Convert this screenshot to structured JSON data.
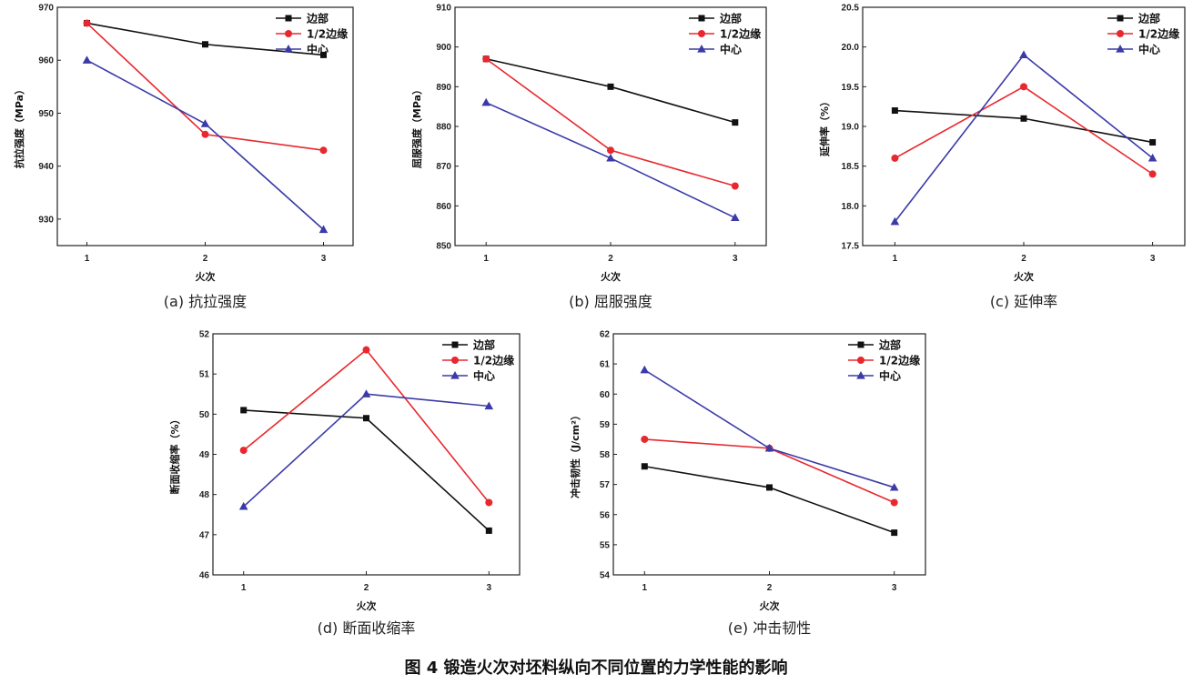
{
  "figure_title": "图 4  锻造火次对坯料纵向不同位置的力学性能的影响",
  "series_colors": {
    "边部": "#111111",
    "1/2边缘": "#e8282e",
    "中心": "#3a3aa8"
  },
  "chart_data": [
    {
      "id": "a",
      "type": "line",
      "caption": "(a) 抗拉强度",
      "xlabel": "火次",
      "ylabel": "抗拉强度（MPa）",
      "x": [
        1,
        2,
        3
      ],
      "ylim": [
        925,
        970
      ],
      "yticks": [
        930,
        940,
        950,
        960,
        970
      ],
      "series": [
        {
          "name": "边部",
          "marker": "square",
          "values": [
            967,
            963,
            961
          ]
        },
        {
          "name": "1/2边缘",
          "marker": "circle",
          "values": [
            967,
            946,
            943
          ]
        },
        {
          "name": "中心",
          "marker": "triangle",
          "values": [
            960,
            948,
            928
          ]
        }
      ],
      "legend": "top-right"
    },
    {
      "id": "b",
      "type": "line",
      "caption": "(b) 屈服强度",
      "xlabel": "火次",
      "ylabel": "屈服强度（MPa）",
      "x": [
        1,
        2,
        3
      ],
      "ylim": [
        850,
        910
      ],
      "yticks": [
        850,
        860,
        870,
        880,
        890,
        900,
        910
      ],
      "series": [
        {
          "name": "边部",
          "marker": "square",
          "values": [
            897,
            890,
            881
          ]
        },
        {
          "name": "1/2边缘",
          "marker": "circle",
          "values": [
            897,
            874,
            865
          ]
        },
        {
          "name": "中心",
          "marker": "triangle",
          "values": [
            886,
            872,
            857
          ]
        }
      ],
      "legend": "top-right"
    },
    {
      "id": "c",
      "type": "line",
      "caption": "(c) 延伸率",
      "xlabel": "火次",
      "ylabel": "延伸率（%）",
      "x": [
        1,
        2,
        3
      ],
      "ylim": [
        17.5,
        20.5
      ],
      "yticks": [
        "17.5",
        "18.0",
        "18.5",
        "19.0",
        "19.5",
        "20.0",
        "20.5"
      ],
      "series": [
        {
          "name": "边部",
          "marker": "square",
          "values": [
            19.2,
            19.1,
            18.8
          ]
        },
        {
          "name": "1/2边缘",
          "marker": "circle",
          "values": [
            18.6,
            19.5,
            18.4
          ]
        },
        {
          "name": "中心",
          "marker": "triangle",
          "values": [
            17.8,
            19.9,
            18.6
          ]
        }
      ],
      "legend": "top-right"
    },
    {
      "id": "d",
      "type": "line",
      "caption": "(d) 断面收缩率",
      "xlabel": "火次",
      "ylabel": "断面收缩率（%）",
      "x": [
        1,
        2,
        3
      ],
      "ylim": [
        46,
        52
      ],
      "yticks": [
        46,
        47,
        48,
        49,
        50,
        51,
        52
      ],
      "series": [
        {
          "name": "边部",
          "marker": "square",
          "values": [
            50.1,
            49.9,
            47.1
          ]
        },
        {
          "name": "1/2边缘",
          "marker": "circle",
          "values": [
            49.1,
            51.6,
            47.8
          ]
        },
        {
          "name": "中心",
          "marker": "triangle",
          "values": [
            47.7,
            50.5,
            50.2
          ]
        }
      ],
      "legend": "top-right"
    },
    {
      "id": "e",
      "type": "line",
      "caption": "(e) 冲击韧性",
      "xlabel": "火次",
      "ylabel": "冲击韧性（J/cm²）",
      "x": [
        1,
        2,
        3
      ],
      "ylim": [
        54,
        62
      ],
      "yticks": [
        54,
        55,
        56,
        57,
        58,
        59,
        60,
        61,
        62
      ],
      "series": [
        {
          "name": "边部",
          "marker": "square",
          "values": [
            57.6,
            56.9,
            55.4
          ]
        },
        {
          "name": "1/2边缘",
          "marker": "circle",
          "values": [
            58.5,
            58.2,
            56.4
          ]
        },
        {
          "name": "中心",
          "marker": "triangle",
          "values": [
            60.8,
            58.2,
            56.9
          ]
        }
      ],
      "legend": "top-right"
    }
  ]
}
